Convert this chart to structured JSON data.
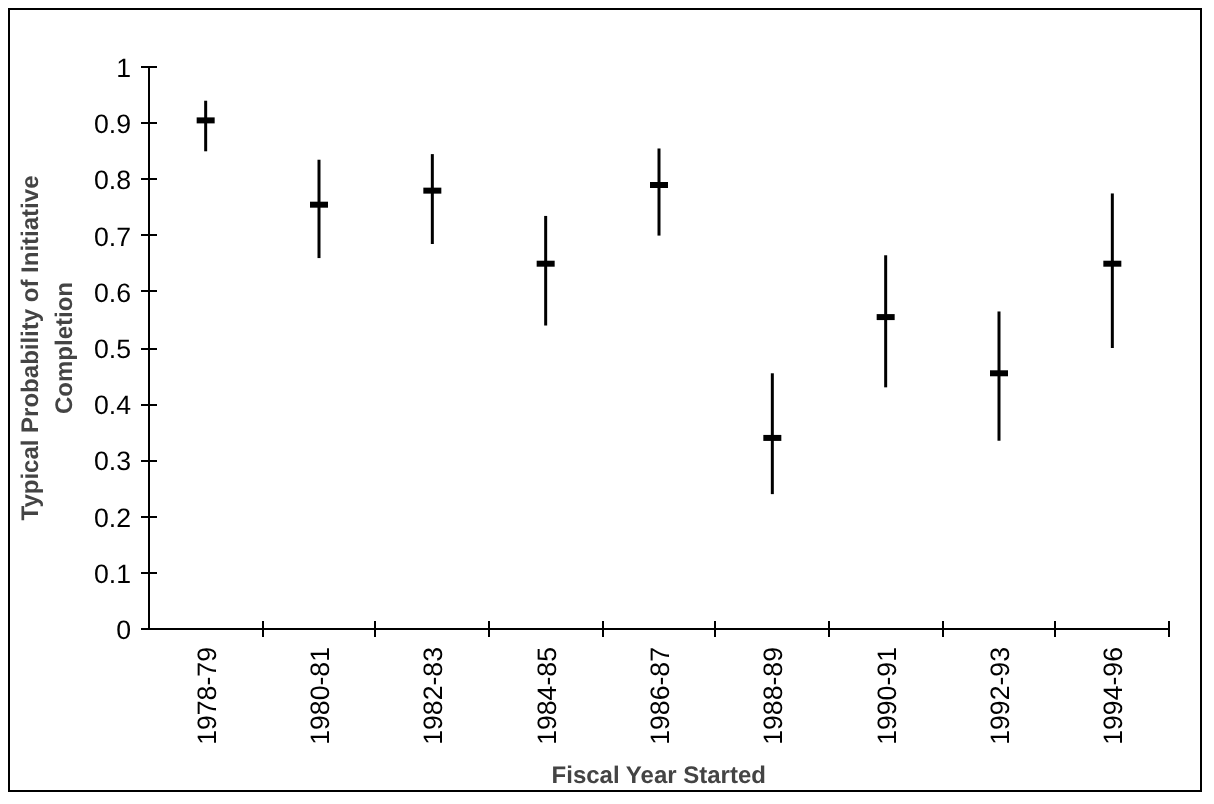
{
  "chart_data": {
    "type": "scatter",
    "xlabel": "Fiscal Year Started",
    "ylabel": "Typical Probability of Initiative Completion",
    "categories": [
      "1978-79",
      "1980-81",
      "1982-83",
      "1984-85",
      "1986-87",
      "1988-89",
      "1990-91",
      "1992-93",
      "1994-96"
    ],
    "values": [
      0.905,
      0.755,
      0.78,
      0.65,
      0.79,
      0.34,
      0.555,
      0.455,
      0.65
    ],
    "errors": [
      [
        0.85,
        0.94
      ],
      [
        0.66,
        0.835
      ],
      [
        0.685,
        0.845
      ],
      [
        0.54,
        0.735
      ],
      [
        0.7,
        0.855
      ],
      [
        0.24,
        0.455
      ],
      [
        0.43,
        0.665
      ],
      [
        0.335,
        0.565
      ],
      [
        0.5,
        0.775
      ]
    ],
    "color": "#000000",
    "ylim": [
      0,
      1
    ],
    "yticks": [
      0,
      0.1,
      0.2,
      0.3,
      0.4,
      0.5,
      0.6,
      0.7,
      0.8,
      0.9,
      1
    ],
    "grid": false
  }
}
